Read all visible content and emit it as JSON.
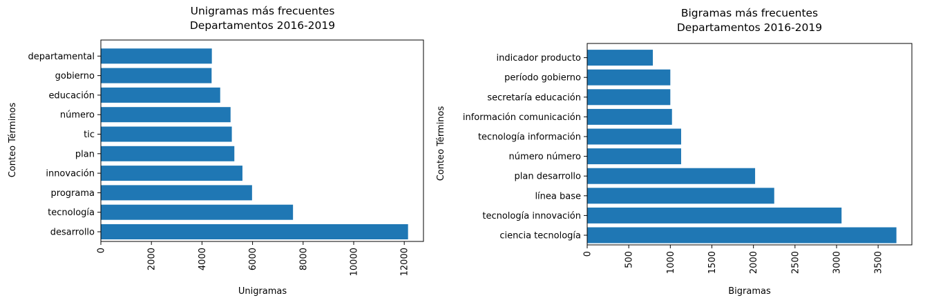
{
  "chart_data": [
    {
      "type": "bar",
      "orientation": "horizontal",
      "title": "Unigramas más frecuentes",
      "subtitle": "Departamentos 2016-2019",
      "xlabel": "Unigramas",
      "ylabel": "Conteo Términos",
      "categories": [
        "desarrollo",
        "tecnología",
        "programa",
        "innovación",
        "plan",
        "tic",
        "número",
        "educación",
        "gobierno",
        "departamental"
      ],
      "values": [
        12150,
        7600,
        5980,
        5600,
        5280,
        5180,
        5130,
        4720,
        4380,
        4390
      ],
      "xticks": [
        0,
        2000,
        4000,
        6000,
        8000,
        10000,
        12000
      ],
      "xlim": [
        0,
        12760
      ],
      "color": "#1f77b4",
      "grid": false,
      "legend": "none"
    },
    {
      "type": "bar",
      "orientation": "horizontal",
      "title": "Bigramas más frecuentes",
      "subtitle": "Departamentos 2016-2019",
      "xlabel": "Bigramas",
      "ylabel": "Conteo Términos",
      "categories": [
        "ciencia tecnología",
        "tecnología innovación",
        "línea base",
        "plan desarrollo",
        "número número",
        "tecnología información",
        "información comunicación",
        "secretaría educación",
        "período gobierno",
        "indicador producto"
      ],
      "values": [
        3720,
        3060,
        2250,
        2020,
        1130,
        1130,
        1020,
        1000,
        1000,
        790
      ],
      "xticks": [
        0,
        500,
        1000,
        1500,
        2000,
        2500,
        3000,
        3500
      ],
      "xlim": [
        0,
        3906
      ],
      "color": "#1f77b4",
      "grid": false,
      "legend": "none"
    }
  ]
}
